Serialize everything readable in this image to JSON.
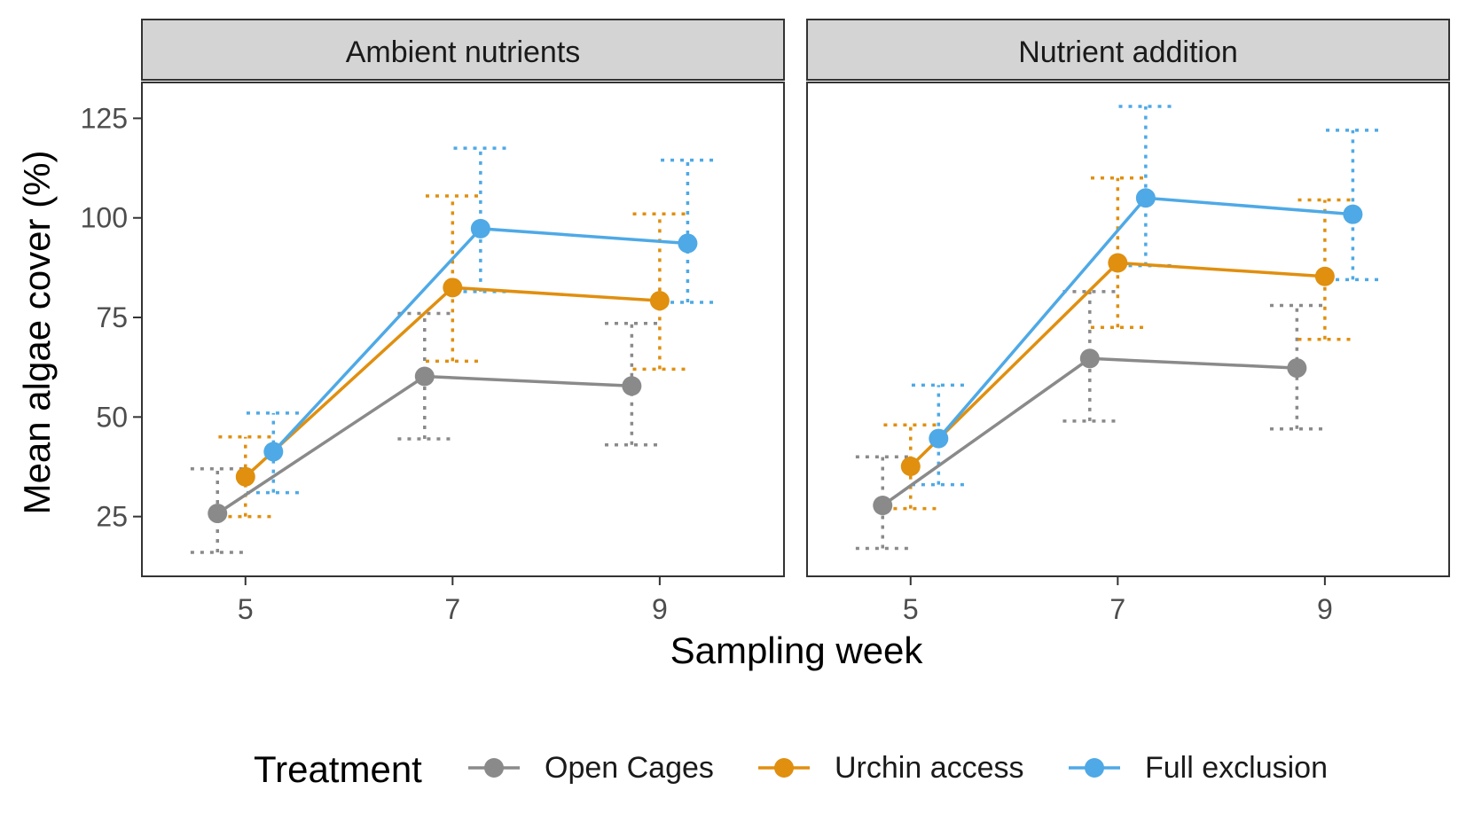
{
  "chart_data": {
    "type": "line",
    "xlabel": "Sampling week",
    "ylabel": "Mean algae cover (%)",
    "x_ticks": [
      5,
      7,
      9
    ],
    "y_ticks": [
      25,
      50,
      75,
      100,
      125
    ],
    "xlim": [
      4,
      10.2
    ],
    "ylim": [
      10,
      134
    ],
    "grid": false,
    "legend": {
      "title": "Treatment",
      "position": "bottom",
      "entries": [
        "Open Cages",
        "Urchin access",
        "Full exclusion"
      ]
    },
    "colors": {
      "Open Cages": "#8a8a8a",
      "Urchin access": "#e08f0f",
      "Full exclusion": "#4ea9e6",
      "strip_fill": "#d4d4d4",
      "panel_border": "#333333"
    },
    "panels": [
      {
        "label": "Ambient nutrients",
        "series": [
          {
            "name": "Open Cages",
            "x": [
              5,
              7,
              9
            ],
            "y": [
              25.8,
              60.2,
              57.8
            ],
            "lower": [
              16,
              44.5,
              43
            ],
            "upper": [
              37,
              76,
              73.5
            ]
          },
          {
            "name": "Urchin access",
            "x": [
              5,
              7,
              9
            ],
            "y": [
              35,
              82.5,
              79.2
            ],
            "lower": [
              25,
              64,
              62
            ],
            "upper": [
              45,
              105.5,
              101
            ]
          },
          {
            "name": "Full exclusion",
            "x": [
              5,
              7,
              9
            ],
            "y": [
              41.3,
              97.3,
              93.6
            ],
            "lower": [
              31,
              81.5,
              78.8
            ],
            "upper": [
              51,
              117.5,
              114.5
            ]
          }
        ]
      },
      {
        "label": "Nutrient addition",
        "series": [
          {
            "name": "Open Cages",
            "x": [
              5,
              7,
              9
            ],
            "y": [
              27.8,
              64.7,
              62.3
            ],
            "lower": [
              17,
              49,
              47
            ],
            "upper": [
              40,
              81.5,
              78
            ]
          },
          {
            "name": "Urchin access",
            "x": [
              5,
              7,
              9
            ],
            "y": [
              37.6,
              88.7,
              85.3
            ],
            "lower": [
              27,
              72.5,
              69.5
            ],
            "upper": [
              48,
              110,
              104.5
            ]
          },
          {
            "name": "Full exclusion",
            "x": [
              5,
              7,
              9
            ],
            "y": [
              44.6,
              105,
              100.9
            ],
            "lower": [
              33,
              88,
              84.5
            ],
            "upper": [
              58,
              128,
              122
            ]
          }
        ]
      }
    ]
  }
}
